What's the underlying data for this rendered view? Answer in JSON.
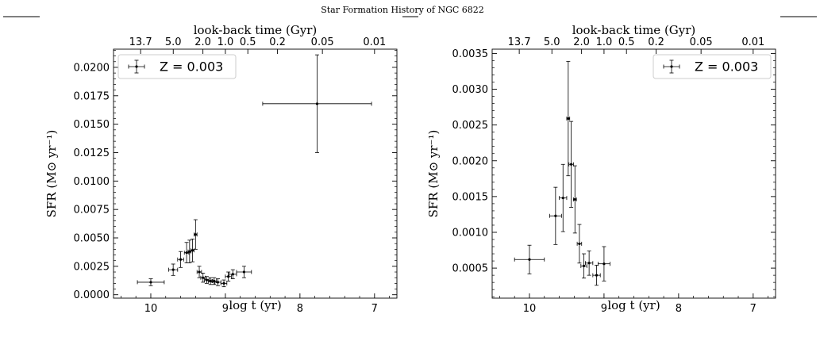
{
  "figure_title": "Star Formation History of NGC 6822",
  "chart_data": [
    {
      "type": "scatter",
      "title": "",
      "xlabel": "log t (yr)",
      "ylabel": "SFR (M⊙ yr⁻¹)",
      "top_axis_label": "look-back time (Gyr)",
      "xlim": [
        10.5,
        6.7
      ],
      "ylim": [
        -0.0003,
        0.0216
      ],
      "x_ticks": [
        10,
        9,
        8,
        7
      ],
      "x_tick_labels": [
        "10",
        "9",
        "8",
        "7"
      ],
      "y_ticks": [
        0.0,
        0.0025,
        0.005,
        0.0075,
        0.01,
        0.0125,
        0.015,
        0.0175,
        0.02
      ],
      "y_tick_labels": [
        "0.0000",
        "0.0025",
        "0.0050",
        "0.0075",
        "0.0100",
        "0.0125",
        "0.0150",
        "0.0175",
        "0.0200"
      ],
      "top_ticks": [
        13.7,
        5.0,
        2.0,
        1.0,
        0.5,
        0.2,
        0.05,
        0.01
      ],
      "top_tick_labels": [
        "13.7",
        "5.0",
        "2.0",
        "1.0",
        "0.5",
        "0.2",
        "0.05",
        "0.01"
      ],
      "legend": {
        "label": "Z = 0.003",
        "placement": "top-left"
      },
      "series": [
        {
          "x": [
            10.0,
            9.7,
            9.6,
            9.52,
            9.48,
            9.44,
            9.4,
            9.35,
            9.3,
            9.25,
            9.2,
            9.15,
            9.1,
            9.02,
            8.96,
            8.9,
            8.75,
            7.77
          ],
          "xerr": [
            0.18,
            0.06,
            0.04,
            0.03,
            0.02,
            0.02,
            0.02,
            0.03,
            0.03,
            0.03,
            0.03,
            0.03,
            0.04,
            0.04,
            0.04,
            0.05,
            0.1,
            0.73
          ],
          "y": [
            0.0011,
            0.0022,
            0.0031,
            0.0037,
            0.0038,
            0.0039,
            0.0053,
            0.002,
            0.0015,
            0.0013,
            0.0012,
            0.0012,
            0.0011,
            0.001,
            0.0016,
            0.0018,
            0.002,
            0.0168
          ],
          "yerr": [
            0.0003,
            0.0005,
            0.0007,
            0.0009,
            0.001,
            0.001,
            0.0013,
            0.0005,
            0.0004,
            0.0003,
            0.0003,
            0.0003,
            0.0003,
            0.0003,
            0.0004,
            0.0004,
            0.0005,
            0.0043
          ]
        }
      ]
    },
    {
      "type": "scatter",
      "title": "",
      "xlabel": "log t (yr)",
      "ylabel": "SFR (M⊙ yr⁻¹)",
      "top_axis_label": "look-back time (Gyr)",
      "xlim": [
        10.5,
        6.7
      ],
      "ylim": [
        8e-05,
        0.00356
      ],
      "x_ticks": [
        10,
        9,
        8,
        7
      ],
      "x_tick_labels": [
        "10",
        "9",
        "8",
        "7"
      ],
      "y_ticks": [
        0.0005,
        0.001,
        0.0015,
        0.002,
        0.0025,
        0.003,
        0.0035
      ],
      "y_tick_labels": [
        "0.0005",
        "0.0010",
        "0.0015",
        "0.0020",
        "0.0025",
        "0.0030",
        "0.0035"
      ],
      "top_ticks": [
        13.7,
        5.0,
        2.0,
        1.0,
        0.5,
        0.2,
        0.05,
        0.01
      ],
      "top_tick_labels": [
        "13.7",
        "5.0",
        "2.0",
        "1.0",
        "0.5",
        "0.2",
        "0.05",
        "0.01"
      ],
      "legend": {
        "label": "Z = 0.003",
        "placement": "top-right"
      },
      "series": [
        {
          "x": [
            10.0,
            9.65,
            9.55,
            9.48,
            9.44,
            9.39,
            9.33,
            9.27,
            9.2,
            9.1,
            9.0
          ],
          "xerr": [
            0.2,
            0.08,
            0.05,
            0.02,
            0.03,
            0.02,
            0.03,
            0.04,
            0.05,
            0.05,
            0.08
          ],
          "y": [
            0.00062,
            0.00123,
            0.00148,
            0.00259,
            0.00195,
            0.00146,
            0.00084,
            0.00053,
            0.00057,
            0.0004,
            0.00056
          ],
          "yerr": [
            0.0002,
            0.0004,
            0.00047,
            0.0008,
            0.0006,
            0.00047,
            0.00027,
            0.00017,
            0.00017,
            0.00014,
            0.00024
          ]
        }
      ]
    }
  ]
}
